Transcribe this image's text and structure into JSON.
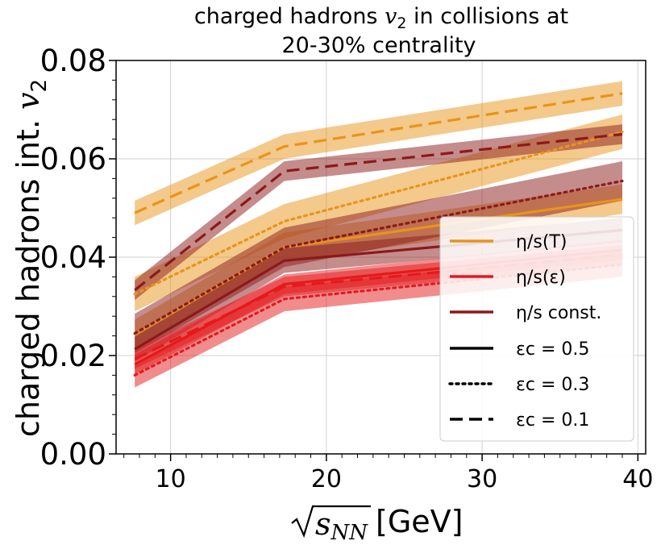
{
  "chart_data": {
    "type": "line",
    "title": "charged hadrons v2 in collisions at 20-30% centrality",
    "title_lines": [
      "charged hadrons",
      "v",
      "2",
      " in collisions at",
      "20-30% centrality"
    ],
    "xlabel_parts": {
      "sqrt_arg": "s",
      "sqrt_sub": "NN",
      "unit": "[GeV]"
    },
    "ylabel_parts": {
      "text": "charged hadrons int. ",
      "var": "v",
      "sub": "2"
    },
    "xlim": [
      6.5,
      40.5
    ],
    "ylim": [
      0.0,
      0.08
    ],
    "xticks": [
      10,
      20,
      30,
      40
    ],
    "xtick_labels": [
      "10",
      "20",
      "30",
      "40"
    ],
    "yticks": [
      0.0,
      0.02,
      0.04,
      0.06,
      0.08
    ],
    "ytick_labels": [
      "0.00",
      "0.02",
      "0.04",
      "0.06",
      "0.08"
    ],
    "grid": true,
    "legend_position": "lower-right",
    "legend": [
      {
        "key": "T",
        "label": "η/s(T)",
        "style": "solid",
        "color": "#E8941A"
      },
      {
        "key": "eps",
        "label": "η/s(ε)",
        "style": "solid",
        "color": "#E41A1C"
      },
      {
        "key": "const",
        "label": "η/s const.",
        "style": "solid",
        "color": "#8B1A1A"
      },
      {
        "key": "e05",
        "label": "εc = 0.5",
        "style": "solid",
        "color": "#000000"
      },
      {
        "key": "e03",
        "label": "εc = 0.3",
        "style": "dotted",
        "color": "#000000"
      },
      {
        "key": "e01",
        "label": "εc = 0.1",
        "style": "dashed",
        "color": "#000000"
      }
    ],
    "x": [
      7.7,
      17.3,
      39.0
    ],
    "colors": {
      "T": "#E8941A",
      "eps": "#E41A1C",
      "const": "#8B1A1A"
    },
    "series": [
      {
        "model": "eta_s_T",
        "epsilon_c": 0.1,
        "style": "dashed",
        "color": "#E8941A",
        "values": [
          0.049,
          0.0625,
          0.0733
        ],
        "err": 0.0025
      },
      {
        "model": "eta_s_T",
        "epsilon_c": 0.3,
        "style": "dotted",
        "color": "#E8941A",
        "values": [
          0.0325,
          0.0473,
          0.0655
        ],
        "err": 0.0035
      },
      {
        "model": "eta_s_T",
        "epsilon_c": 0.5,
        "style": "solid",
        "color": "#E8941A",
        "values": [
          0.0243,
          0.042,
          0.0518
        ],
        "err": 0.003
      },
      {
        "model": "eta_s_const",
        "epsilon_c": 0.1,
        "style": "dashed",
        "color": "#8B1A1A",
        "values": [
          0.0333,
          0.0575,
          0.065
        ],
        "err": 0.002
      },
      {
        "model": "eta_s_const",
        "epsilon_c": 0.3,
        "style": "dotted",
        "color": "#8B1A1A",
        "values": [
          0.0245,
          0.042,
          0.0555
        ],
        "err": 0.004
      },
      {
        "model": "eta_s_const",
        "epsilon_c": 0.5,
        "style": "solid",
        "color": "#8B1A1A",
        "values": [
          0.0213,
          0.0393,
          0.0455
        ],
        "err": 0.0025
      },
      {
        "model": "eta_s_eps",
        "epsilon_c": 0.1,
        "style": "dashed",
        "color": "#E41A1C",
        "values": [
          0.0193,
          0.034,
          0.0405
        ],
        "err": 0.002
      },
      {
        "model": "eta_s_eps",
        "epsilon_c": 0.3,
        "style": "dotted",
        "color": "#E41A1C",
        "values": [
          0.016,
          0.0315,
          0.0385
        ],
        "err": 0.0025
      },
      {
        "model": "eta_s_eps",
        "epsilon_c": 0.5,
        "style": "solid",
        "color": "#E41A1C",
        "values": [
          0.0182,
          0.0345,
          0.0415
        ],
        "err": 0.002
      }
    ]
  }
}
